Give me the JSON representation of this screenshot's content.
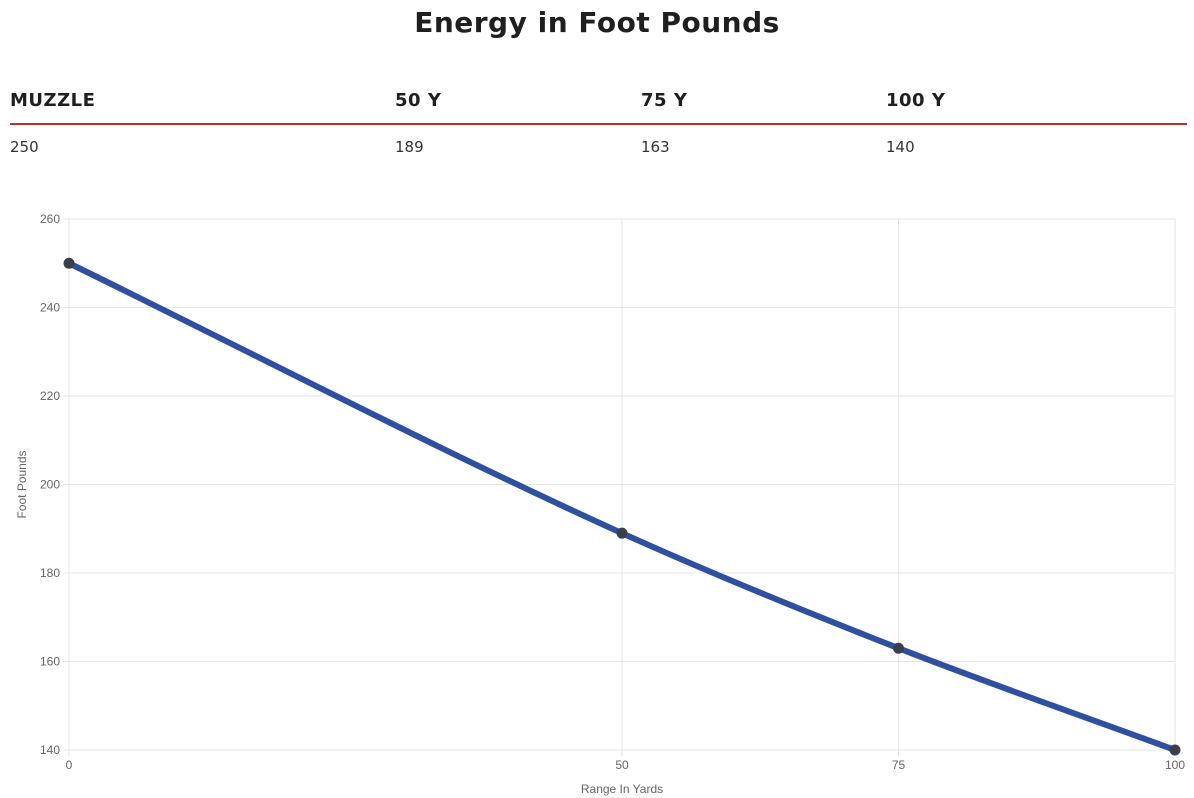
{
  "title": "Energy in Foot Pounds",
  "table": {
    "headers": [
      "MUZZLE",
      "50 Y",
      "75 Y",
      "100 Y"
    ],
    "values": [
      "250",
      "189",
      "163",
      "140"
    ]
  },
  "colors": {
    "line": "#2f4fa0",
    "point": "#3a3f4a",
    "rule": "#b7322a",
    "grid": "#e6e6e6"
  },
  "chart_data": {
    "type": "line",
    "title": "",
    "xlabel": "Range In Yards",
    "ylabel": "Foot Pounds",
    "x": [
      0,
      50,
      75,
      100
    ],
    "x_ticks": [
      "0",
      "50",
      "75",
      "100"
    ],
    "y_ticks": [
      "260",
      "240",
      "220",
      "200",
      "180",
      "160",
      "140"
    ],
    "xlim": [
      0,
      100
    ],
    "ylim": [
      140,
      260
    ],
    "grid": true,
    "legend": "none",
    "series": [
      {
        "values": [
          250,
          189,
          163,
          140
        ]
      }
    ]
  }
}
